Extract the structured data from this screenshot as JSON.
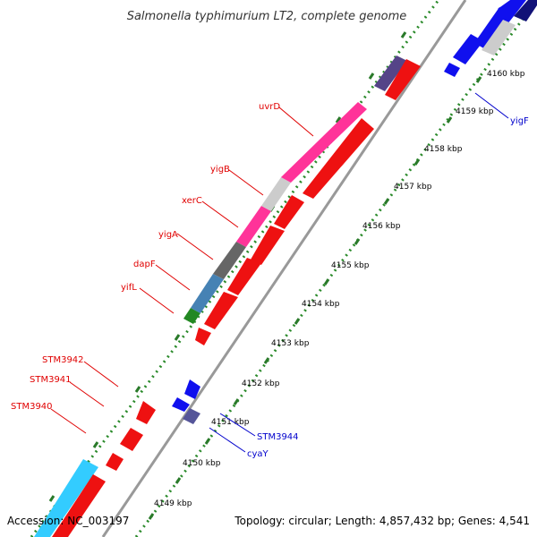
{
  "title": "Salmonella typhimurium LT2, complete genome",
  "footer": {
    "accession": "Accession: NC_003197",
    "summary": "Topology: circular; Length: 4,857,432 bp; Genes: 4,541"
  },
  "colors": {
    "backbone": "#999999",
    "tick_major": "#2a7a2a",
    "tick_minor": "#2a8a2a",
    "forward_label": "#e00000",
    "reverse_label": "#0000cc",
    "cds_forward": "#ff0000",
    "cds_reverse": "#0000ee"
  },
  "kbp_labels": [
    "4149 kbp",
    "4150 kbp",
    "4151 kbp",
    "4152 kbp",
    "4153 kbp",
    "4154 kbp",
    "4155 kbp",
    "4156 kbp",
    "4157 kbp",
    "4158 kbp",
    "4159 kbp",
    "4160 kbp"
  ],
  "genes_forward": [
    "STM3940",
    "STM3941",
    "STM3942",
    "yifL",
    "dapF",
    "yigA",
    "xerC",
    "yigB",
    "uvrD"
  ],
  "genes_reverse": [
    "STM3944",
    "cyaY",
    "yigF"
  ]
}
